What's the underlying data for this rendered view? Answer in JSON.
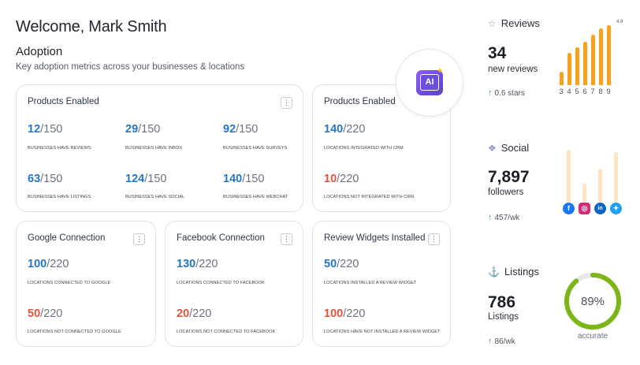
{
  "header": {
    "welcome": "Welcome, Mark Smith"
  },
  "adoption": {
    "title": "Adoption",
    "subtitle": "Key adoption metrics across your businesses & locations",
    "ai_badge": "AI"
  },
  "cards": {
    "products_enabled_business": {
      "title": "Products Enabled",
      "metrics": [
        {
          "num": "12",
          "den": "/150",
          "label": "Businesses have reviews"
        },
        {
          "num": "29",
          "den": "/150",
          "label": "Businesses have inbox"
        },
        {
          "num": "92",
          "den": "/150",
          "label": "Businesses have surveys"
        },
        {
          "num": "63",
          "den": "/150",
          "label": "Businesses have listings"
        },
        {
          "num": "124",
          "den": "/150",
          "label": "Businesses have social"
        },
        {
          "num": "140",
          "den": "/150",
          "label": "Businesses have webchat"
        }
      ]
    },
    "products_enabled_locations": {
      "title": "Products Enabled",
      "metrics": [
        {
          "num": "140",
          "den": "/220",
          "label": "Locations integrated with CRM"
        },
        {
          "num": "10",
          "den": "/220",
          "label": "Locations not integrated with CRM"
        }
      ]
    },
    "google": {
      "title": "Google Connection",
      "metrics": [
        {
          "num": "100",
          "den": "/220",
          "label": "Locations connected to Google"
        },
        {
          "num": "50",
          "den": "/220",
          "label": "Locations not connected to Google"
        }
      ]
    },
    "facebook": {
      "title": "Facebook Connection",
      "metrics": [
        {
          "num": "130",
          "den": "/220",
          "label": "Locations connected to Facebook"
        },
        {
          "num": "20",
          "den": "/220",
          "label": "Locations not connected to Facebook"
        }
      ]
    },
    "widgets": {
      "title": "Review Widgets Installed",
      "metrics": [
        {
          "num": "50",
          "den": "/220",
          "label": "Locations installed a review widget"
        },
        {
          "num": "100",
          "den": "/220",
          "label": "Locations have not installed a review widget"
        }
      ]
    }
  },
  "menu_glyph": "⋮",
  "reviews": {
    "title": "Reviews",
    "icon": "star-icon",
    "count": "34",
    "count_label": "new reviews",
    "delta": "0.6 stars",
    "top_value": "4.9",
    "accent": "#f7a21b"
  },
  "social": {
    "title": "Social",
    "icon": "social-icon",
    "count": "7,897",
    "count_label": "followers",
    "delta": "457/wk",
    "networks": [
      "facebook-icon",
      "instagram-icon",
      "linkedin-icon",
      "twitter-icon"
    ]
  },
  "listings": {
    "title": "Listings",
    "icon": "anchor-icon",
    "count": "786",
    "count_label": "Listings",
    "delta": "86/wk",
    "gauge_value": 89,
    "gauge_text": "89%",
    "gauge_caption": "accurate",
    "gauge_color": "#7cb518"
  },
  "chart_data": {
    "type": "bar",
    "categories": [
      "3",
      "4",
      "5",
      "6",
      "7",
      "8",
      "9"
    ],
    "values": [
      1.1,
      2.6,
      3.1,
      3.5,
      4.1,
      4.6,
      4.9
    ],
    "ylim": [
      0,
      5
    ]
  }
}
